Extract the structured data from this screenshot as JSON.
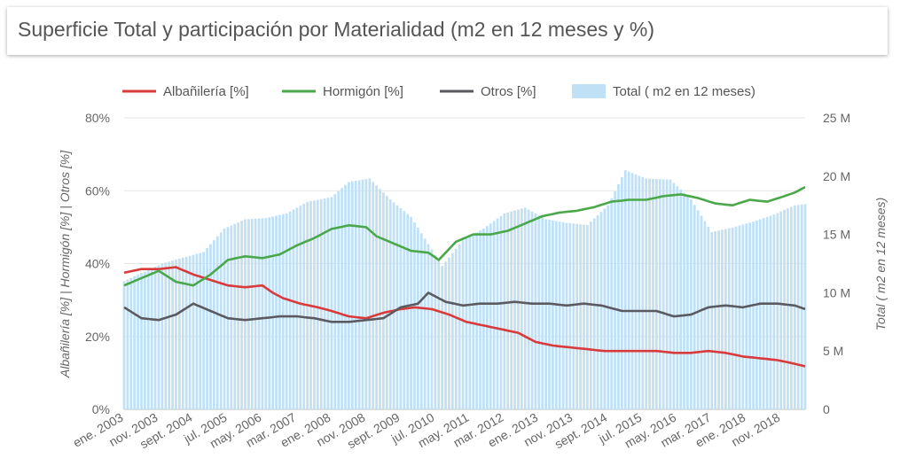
{
  "title": "Superficie Total y participación por Materialidad (m2 en 12 meses y %)",
  "colors": {
    "albanileria": "#d93a3a",
    "hormigon": "#4aa84a",
    "otros": "#5a5a60",
    "total": "#bfe0f5",
    "grid": "#e6e6e6"
  },
  "chart_data": {
    "type": "line",
    "title": "Superficie Total y participación por Materialidad (m2 en 12 meses y %)",
    "ylabel": "Albañilería [%] | Hormigón [%] | Otros [%]",
    "y2label": "Total ( m2 en 12 meses)",
    "ylim": [
      0,
      80
    ],
    "y2lim": [
      0,
      25000000
    ],
    "y_ticks": [
      "0%",
      "20%",
      "40%",
      "60%",
      "80%"
    ],
    "y2_ticks": [
      "0",
      "5 M",
      "10 M",
      "15 M",
      "20 M",
      "25 M"
    ],
    "x_tick_labels": [
      "ene. 2003",
      "nov. 2003",
      "sept. 2004",
      "jul. 2005",
      "may. 2006",
      "mar. 2007",
      "ene. 2008",
      "nov. 2008",
      "sept. 2009",
      "jul. 2010",
      "may. 2011",
      "mar. 2012",
      "ene. 2013",
      "nov. 2013",
      "sept. 2014",
      "jul. 2015",
      "may. 2016",
      "mar. 2017",
      "ene. 2018",
      "nov. 2018"
    ],
    "legend_position": "top",
    "grid": true,
    "x_start": "2003-01",
    "x_end": "2019-06",
    "series": [
      {
        "name": "Albañilería [%]",
        "type": "line",
        "axis": "left",
        "color": "#d93a3a",
        "points": [
          [
            "2003-01",
            37.5
          ],
          [
            "2003-06",
            38.5
          ],
          [
            "2003-11",
            38.5
          ],
          [
            "2004-04",
            39
          ],
          [
            "2004-09",
            37
          ],
          [
            "2005-02",
            35.5
          ],
          [
            "2005-07",
            34
          ],
          [
            "2005-12",
            33.5
          ],
          [
            "2006-05",
            34
          ],
          [
            "2006-08",
            32
          ],
          [
            "2006-11",
            30.5
          ],
          [
            "2007-04",
            29
          ],
          [
            "2007-09",
            28
          ],
          [
            "2008-01",
            27
          ],
          [
            "2008-06",
            25.5
          ],
          [
            "2008-11",
            25
          ],
          [
            "2009-04",
            26.5
          ],
          [
            "2009-09",
            27.5
          ],
          [
            "2010-01",
            28
          ],
          [
            "2010-06",
            27.5
          ],
          [
            "2010-11",
            26
          ],
          [
            "2011-04",
            24
          ],
          [
            "2011-09",
            23
          ],
          [
            "2012-02",
            22
          ],
          [
            "2012-07",
            21
          ],
          [
            "2012-12",
            18.5
          ],
          [
            "2013-05",
            17.5
          ],
          [
            "2013-10",
            17
          ],
          [
            "2014-03",
            16.5
          ],
          [
            "2014-08",
            16
          ],
          [
            "2015-01",
            16
          ],
          [
            "2015-06",
            16
          ],
          [
            "2015-11",
            16
          ],
          [
            "2016-04",
            15.5
          ],
          [
            "2016-09",
            15.5
          ],
          [
            "2017-02",
            16
          ],
          [
            "2017-07",
            15.5
          ],
          [
            "2017-12",
            14.5
          ],
          [
            "2018-05",
            14
          ],
          [
            "2018-10",
            13.5
          ],
          [
            "2019-03",
            12.5
          ],
          [
            "2019-06",
            11.8
          ]
        ]
      },
      {
        "name": "Hormigón [%]",
        "type": "line",
        "axis": "left",
        "color": "#4aa84a",
        "points": [
          [
            "2003-01",
            34
          ],
          [
            "2003-06",
            36
          ],
          [
            "2003-11",
            38
          ],
          [
            "2004-04",
            35
          ],
          [
            "2004-09",
            34
          ],
          [
            "2005-02",
            37
          ],
          [
            "2005-07",
            41
          ],
          [
            "2005-12",
            42
          ],
          [
            "2006-05",
            41.5
          ],
          [
            "2006-10",
            42.5
          ],
          [
            "2007-03",
            45
          ],
          [
            "2007-08",
            47
          ],
          [
            "2008-01",
            49.5
          ],
          [
            "2008-06",
            50.5
          ],
          [
            "2008-11",
            50
          ],
          [
            "2009-02",
            47.5
          ],
          [
            "2009-07",
            45.5
          ],
          [
            "2009-12",
            43.5
          ],
          [
            "2010-05",
            43
          ],
          [
            "2010-08",
            41
          ],
          [
            "2011-01",
            46
          ],
          [
            "2011-06",
            48
          ],
          [
            "2011-11",
            48
          ],
          [
            "2012-04",
            49
          ],
          [
            "2012-09",
            51
          ],
          [
            "2013-02",
            53
          ],
          [
            "2013-07",
            54
          ],
          [
            "2013-12",
            54.5
          ],
          [
            "2014-05",
            55.5
          ],
          [
            "2014-10",
            57
          ],
          [
            "2015-03",
            57.5
          ],
          [
            "2015-08",
            57.5
          ],
          [
            "2016-01",
            58.5
          ],
          [
            "2016-06",
            59
          ],
          [
            "2016-11",
            58
          ],
          [
            "2017-04",
            56.5
          ],
          [
            "2017-09",
            56
          ],
          [
            "2018-02",
            57.5
          ],
          [
            "2018-07",
            57
          ],
          [
            "2018-12",
            58.5
          ],
          [
            "2019-03",
            59.5
          ],
          [
            "2019-06",
            61
          ]
        ]
      },
      {
        "name": "Otros [%]",
        "type": "line",
        "axis": "left",
        "color": "#5a5a60",
        "points": [
          [
            "2003-01",
            28
          ],
          [
            "2003-06",
            25
          ],
          [
            "2003-11",
            24.5
          ],
          [
            "2004-04",
            26
          ],
          [
            "2004-09",
            29
          ],
          [
            "2005-02",
            27
          ],
          [
            "2005-07",
            25
          ],
          [
            "2005-12",
            24.5
          ],
          [
            "2006-05",
            25
          ],
          [
            "2006-10",
            25.5
          ],
          [
            "2007-03",
            25.5
          ],
          [
            "2007-08",
            25
          ],
          [
            "2008-01",
            24
          ],
          [
            "2008-06",
            24
          ],
          [
            "2008-11",
            24.5
          ],
          [
            "2009-04",
            25
          ],
          [
            "2009-09",
            28
          ],
          [
            "2010-02",
            29
          ],
          [
            "2010-05",
            32
          ],
          [
            "2010-10",
            29.5
          ],
          [
            "2011-03",
            28.5
          ],
          [
            "2011-08",
            29
          ],
          [
            "2012-01",
            29
          ],
          [
            "2012-06",
            29.5
          ],
          [
            "2012-11",
            29
          ],
          [
            "2013-04",
            29
          ],
          [
            "2013-09",
            28.5
          ],
          [
            "2014-02",
            29
          ],
          [
            "2014-07",
            28.5
          ],
          [
            "2015-01",
            27
          ],
          [
            "2015-06",
            27
          ],
          [
            "2015-11",
            27
          ],
          [
            "2016-04",
            25.5
          ],
          [
            "2016-09",
            26
          ],
          [
            "2017-02",
            28
          ],
          [
            "2017-07",
            28.5
          ],
          [
            "2017-12",
            28
          ],
          [
            "2018-05",
            29
          ],
          [
            "2018-10",
            29
          ],
          [
            "2019-03",
            28.5
          ],
          [
            "2019-06",
            27.5
          ]
        ]
      },
      {
        "name": "Total ( m2 en 12 meses)",
        "type": "bar",
        "axis": "right",
        "color": "#bfe0f5",
        "points": [
          [
            "2003-01",
            11000000
          ],
          [
            "2003-12",
            12500000
          ],
          [
            "2004-12",
            13500000
          ],
          [
            "2005-06",
            15500000
          ],
          [
            "2005-12",
            16300000
          ],
          [
            "2006-06",
            16400000
          ],
          [
            "2006-12",
            16800000
          ],
          [
            "2007-06",
            17800000
          ],
          [
            "2008-01",
            18200000
          ],
          [
            "2008-06",
            19500000
          ],
          [
            "2008-12",
            19800000
          ],
          [
            "2009-06",
            18000000
          ],
          [
            "2009-12",
            16500000
          ],
          [
            "2010-06",
            13700000
          ],
          [
            "2010-09",
            12300000
          ],
          [
            "2011-03",
            14500000
          ],
          [
            "2011-09",
            15500000
          ],
          [
            "2012-03",
            16800000
          ],
          [
            "2012-09",
            17300000
          ],
          [
            "2013-03",
            16300000
          ],
          [
            "2013-09",
            16000000
          ],
          [
            "2014-03",
            15800000
          ],
          [
            "2014-09",
            17500000
          ],
          [
            "2015-02",
            20500000
          ],
          [
            "2015-08",
            19800000
          ],
          [
            "2016-03",
            19700000
          ],
          [
            "2016-09",
            18000000
          ],
          [
            "2017-03",
            15200000
          ],
          [
            "2017-09",
            15600000
          ],
          [
            "2018-03",
            16100000
          ],
          [
            "2018-09",
            16700000
          ],
          [
            "2019-03",
            17500000
          ],
          [
            "2019-06",
            17600000
          ]
        ]
      }
    ]
  }
}
